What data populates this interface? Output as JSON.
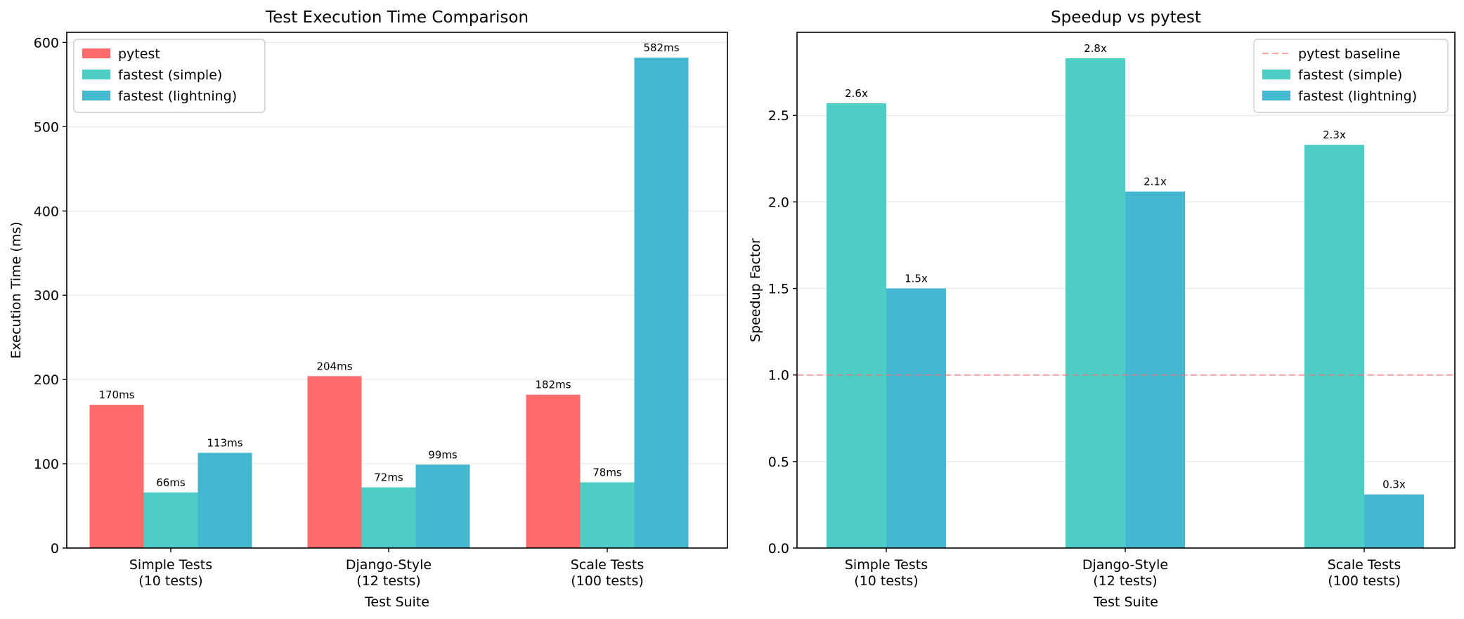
{
  "chart_data": [
    {
      "type": "bar",
      "title": "Test Execution Time Comparison",
      "xlabel": "Test Suite",
      "ylabel": "Execution Time (ms)",
      "ylim": [
        0,
        612
      ],
      "yticks": [
        0,
        100,
        200,
        300,
        400,
        500,
        600
      ],
      "grid": "y",
      "legend_position": "top-left",
      "categories": [
        [
          "Simple Tests",
          "(10 tests)"
        ],
        [
          "Django-Style",
          "(12 tests)"
        ],
        [
          "Scale Tests",
          "(100 tests)"
        ]
      ],
      "series": [
        {
          "name": "pytest",
          "color": "#ff6b6b",
          "values": [
            170,
            204,
            182
          ],
          "labels": [
            "170ms",
            "204ms",
            "182ms"
          ]
        },
        {
          "name": "fastest (simple)",
          "color": "#4ecdc4",
          "values": [
            66,
            72,
            78
          ],
          "labels": [
            "66ms",
            "72ms",
            "78ms"
          ]
        },
        {
          "name": "fastest (lightning)",
          "color": "#45b7d1",
          "values": [
            113,
            99,
            582
          ],
          "labels": [
            "113ms",
            "99ms",
            "582ms"
          ]
        }
      ]
    },
    {
      "type": "bar",
      "title": "Speedup vs pytest",
      "xlabel": "Test Suite",
      "ylabel": "Speedup Factor",
      "ylim": [
        0,
        2.98
      ],
      "yticks": [
        "0.0",
        "0.5",
        "1.0",
        "1.5",
        "2.0",
        "2.5"
      ],
      "grid": "y",
      "legend_position": "top-right",
      "baseline": {
        "name": "pytest baseline",
        "value": 1.0,
        "color": "#ff6b6b",
        "style": "dashed"
      },
      "categories": [
        [
          "Simple Tests",
          "(10 tests)"
        ],
        [
          "Django-Style",
          "(12 tests)"
        ],
        [
          "Scale Tests",
          "(100 tests)"
        ]
      ],
      "series": [
        {
          "name": "fastest (simple)",
          "color": "#4ecdc4",
          "values": [
            2.57,
            2.83,
            2.33
          ],
          "labels": [
            "2.6x",
            "2.8x",
            "2.3x"
          ]
        },
        {
          "name": "fastest (lightning)",
          "color": "#45b7d1",
          "values": [
            1.5,
            2.06,
            0.31
          ],
          "labels": [
            "1.5x",
            "2.1x",
            "0.3x"
          ]
        }
      ]
    }
  ]
}
